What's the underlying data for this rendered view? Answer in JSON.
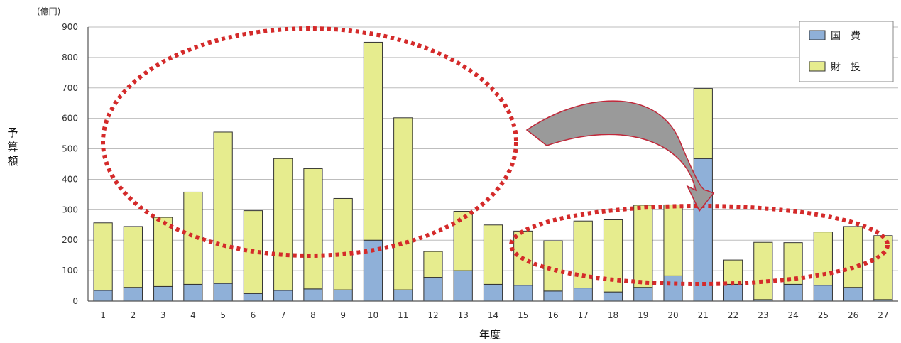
{
  "chart_data": {
    "type": "bar",
    "stacked": true,
    "unit_label": "(億円)",
    "ylabel": "予算額",
    "xlabel": "年度",
    "ylim": [
      0,
      900
    ],
    "yticks": [
      0,
      100,
      200,
      300,
      400,
      500,
      600,
      700,
      800,
      900
    ],
    "grid": true,
    "legend_position": "top-right",
    "categories": [
      "1",
      "2",
      "3",
      "4",
      "5",
      "6",
      "7",
      "8",
      "9",
      "10",
      "11",
      "12",
      "13",
      "14",
      "15",
      "16",
      "17",
      "18",
      "19",
      "20",
      "21",
      "22",
      "23",
      "24",
      "25",
      "26",
      "27"
    ],
    "series": [
      {
        "name": "国　費",
        "color": "#8fb0d8",
        "values": [
          35,
          45,
          48,
          55,
          58,
          25,
          35,
          40,
          37,
          200,
          37,
          78,
          100,
          55,
          52,
          33,
          43,
          30,
          45,
          83,
          468,
          55,
          5,
          55,
          52,
          45,
          5
        ]
      },
      {
        "name": "財　投",
        "color": "#e6ec8e",
        "values": [
          222,
          200,
          227,
          303,
          497,
          272,
          433,
          395,
          300,
          650,
          565,
          85,
          195,
          195,
          178,
          165,
          220,
          237,
          270,
          233,
          230,
          80,
          188,
          137,
          175,
          200,
          210
        ]
      }
    ]
  }
}
